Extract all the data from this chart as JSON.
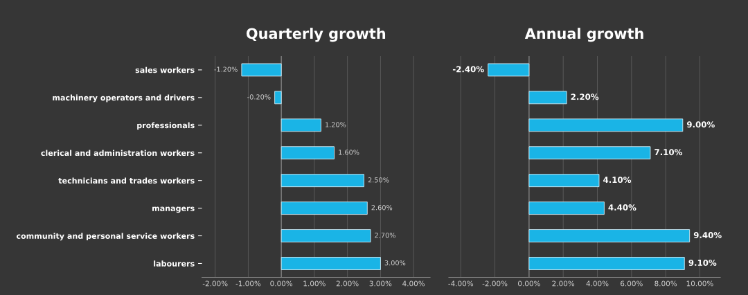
{
  "chart_data": [
    {
      "type": "bar",
      "orientation": "horizontal",
      "title": "Quarterly growth",
      "categories": [
        "sales workers",
        "machinery operators and drivers",
        "professionals",
        "clerical and administration workers",
        "technicians and trades workers",
        "managers",
        "community and personal service workers",
        "labourers"
      ],
      "series": [
        {
          "color": "#1ab4e6",
          "values": [
            -1.2,
            -0.2,
            1.2,
            1.6,
            2.5,
            2.6,
            2.7,
            3.0
          ],
          "value_labels": [
            "-1.20%",
            "-0.20%",
            "1.20%",
            "1.60%",
            "2.50%",
            "2.60%",
            "2.70%",
            "3.00%"
          ]
        }
      ],
      "xlim": [
        -2.4,
        4.5
      ],
      "xticks": [
        {
          "value": -2,
          "label": "-2.00%"
        },
        {
          "value": -1,
          "label": "-1.00%"
        },
        {
          "value": 0,
          "label": "0.00%"
        },
        {
          "value": 1,
          "label": "1.00%"
        },
        {
          "value": 2,
          "label": "2.00%"
        },
        {
          "value": 3,
          "label": "3.00%"
        },
        {
          "value": 4,
          "label": "4.00%"
        }
      ],
      "grid": "x"
    },
    {
      "type": "bar",
      "orientation": "horizontal",
      "title": "Annual growth",
      "categories": [
        null,
        null,
        null,
        null,
        null,
        null,
        null,
        null
      ],
      "series": [
        {
          "color": "#1ab4e6",
          "values": [
            -2.4,
            2.2,
            9.0,
            7.1,
            4.1,
            4.4,
            9.4,
            9.1
          ],
          "value_labels": [
            "-2.40%",
            "2.20%",
            "9.00%",
            "7.10%",
            "4.10%",
            "4.40%",
            "9.40%",
            "9.10%"
          ]
        }
      ],
      "xlim": [
        -4.7,
        11.2
      ],
      "xticks": [
        {
          "value": -4,
          "label": "-4.00%"
        },
        {
          "value": -2,
          "label": "-2.00%"
        },
        {
          "value": 0,
          "label": "0.00%"
        },
        {
          "value": 2,
          "label": "2.00%"
        },
        {
          "value": 4,
          "label": "4.00%"
        },
        {
          "value": 6,
          "label": "6.00%"
        },
        {
          "value": 8,
          "label": "8.00%"
        },
        {
          "value": 10,
          "label": "10.00%"
        }
      ],
      "grid": "x"
    }
  ]
}
